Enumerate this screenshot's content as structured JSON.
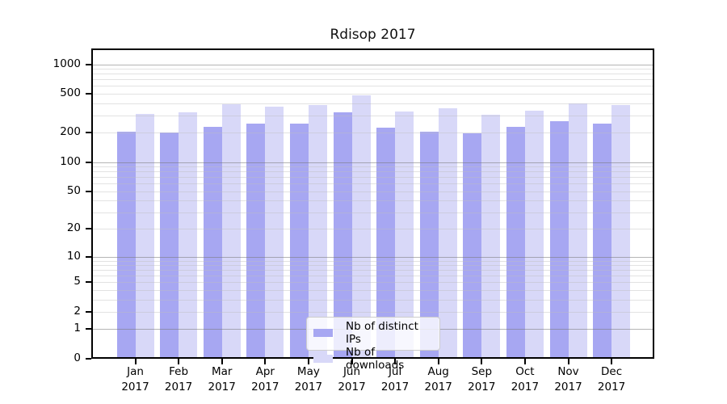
{
  "title": "Rdisop 2017",
  "chart_data": {
    "type": "bar",
    "title": "Rdisop 2017",
    "categories": [
      "Jan 2017",
      "Feb 2017",
      "Mar 2017",
      "Apr 2017",
      "May 2017",
      "Jun 2017",
      "Jul 2017",
      "Aug 2017",
      "Sep 2017",
      "Oct 2017",
      "Nov 2017",
      "Dec 2017"
    ],
    "series": [
      {
        "name": "Nb of distinct IPs",
        "color": "#a7a7f2",
        "values": [
          206,
          201,
          230,
          247,
          249,
          322,
          224,
          206,
          196,
          231,
          261,
          246
        ]
      },
      {
        "name": "Nb of downloads",
        "color": "#d8d8f8",
        "values": [
          310,
          322,
          391,
          368,
          383,
          483,
          328,
          357,
          303,
          336,
          402,
          382
        ]
      }
    ],
    "y_ticks": [
      0,
      1,
      2,
      5,
      10,
      20,
      50,
      100,
      200,
      500,
      1000
    ],
    "y_scale": "log1p",
    "y_axis_top_value": 1449,
    "ylim": [
      0,
      1449
    ],
    "grid": true,
    "legend_position": "bottom-center",
    "xlabel": "",
    "ylabel": ""
  }
}
